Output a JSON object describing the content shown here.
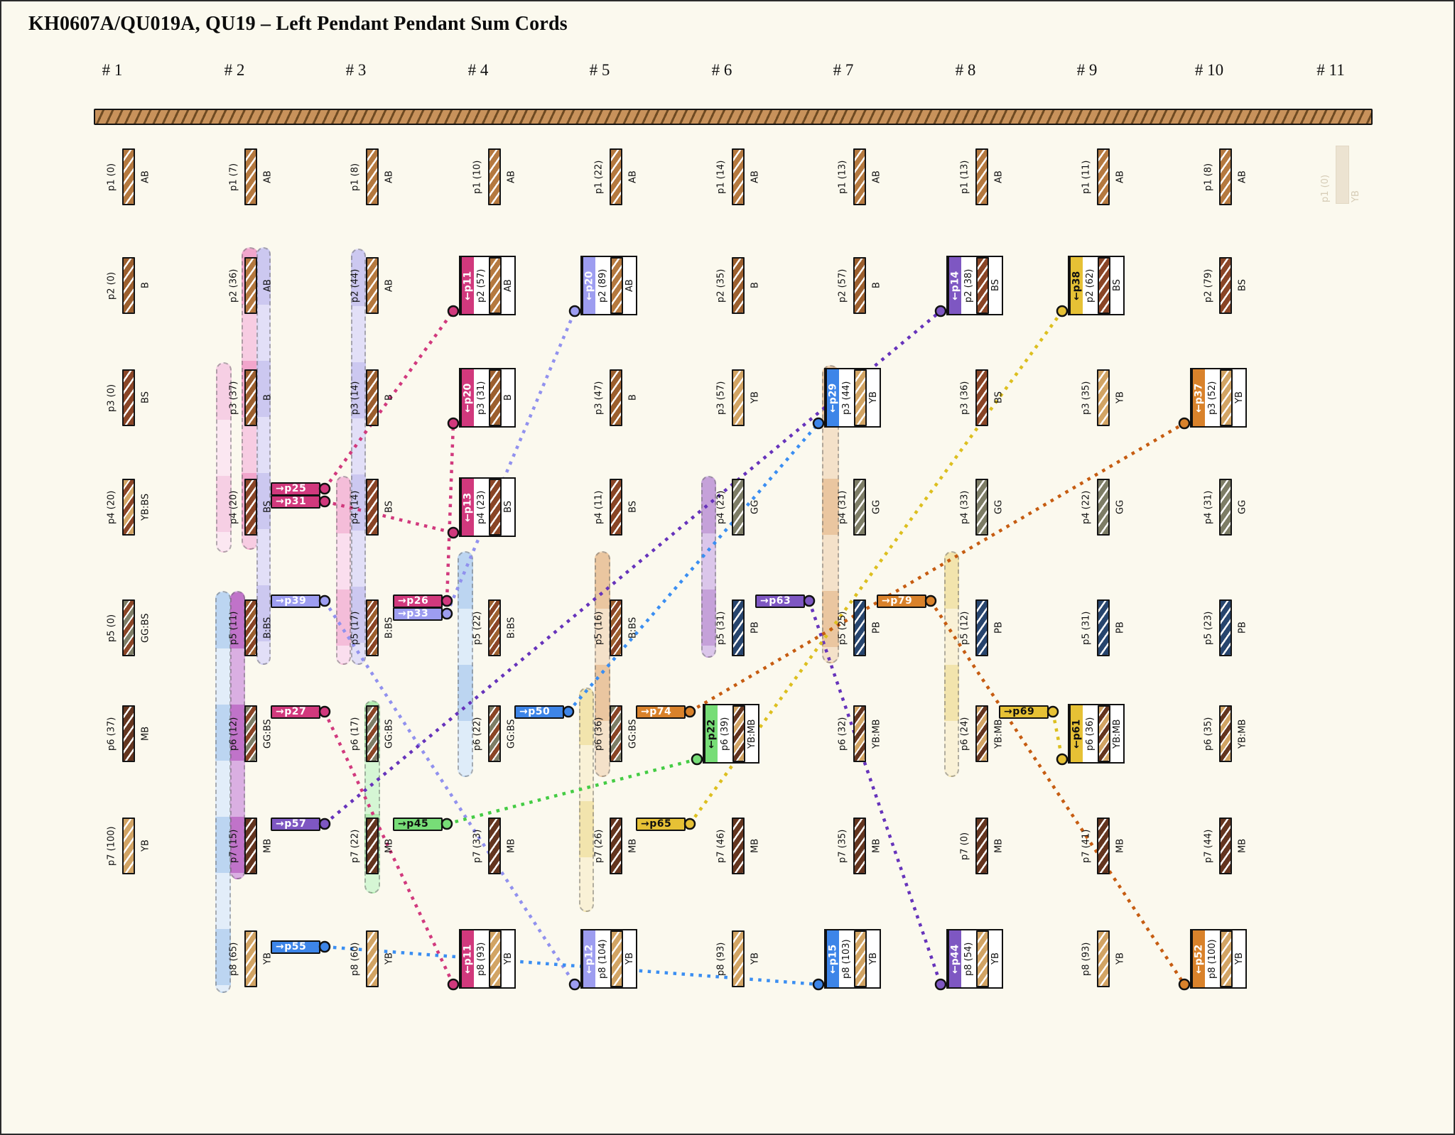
{
  "title": "KH0607A/QU019A, QU19 – Left Pendant Pendant Sum Cords",
  "column_headers": [
    "# 1",
    "# 2",
    "# 3",
    "# 4",
    "# 5",
    "# 6",
    "# 7",
    "# 8",
    "# 9",
    "# 10",
    "# 11"
  ],
  "palette": {
    "crimson": {
      "bg": "#d1397d",
      "line": "#d1397d",
      "text": "#ffffff"
    },
    "periwinkle": {
      "bg": "#9d9df0",
      "line": "#9191ee",
      "text": "#ffffff"
    },
    "blue": {
      "bg": "#3d85e8",
      "line": "#3a8ef2",
      "text": "#ffffff"
    },
    "purple": {
      "bg": "#7e57c2",
      "line": "#6633bb",
      "text": "#ffffff"
    },
    "green": {
      "bg": "#77dd77",
      "line": "#44cc44",
      "text": "#111111"
    },
    "yellow": {
      "bg": "#e6c135",
      "line": "#ddbf1f",
      "text": "#111111"
    },
    "orange": {
      "bg": "#d9822b",
      "line": "#c65c11",
      "text": "#ffffff"
    }
  },
  "cord_codes": {
    "AB": [
      "#b5793f"
    ],
    "B": [
      "#9c5f2e"
    ],
    "BS": [
      "#8a4526"
    ],
    "YB": [
      "#d2a464"
    ],
    "MB": [
      "#64351f"
    ],
    "GG": [
      "#7d7d66"
    ],
    "PB": [
      "#27456e"
    ],
    "YB:BS": [
      "#d2a464",
      "#8a4526"
    ],
    "B:BS": [
      "#9c5f2e",
      "#8a4526"
    ],
    "GG:BS": [
      "#7d7d66",
      "#8a4526"
    ],
    "YB:MB": [
      "#d2a464",
      "#64351f"
    ]
  },
  "columns": [
    {
      "header": "# 1",
      "pendants": [
        {
          "row": 1,
          "label": "p1 (0)",
          "code": "AB"
        },
        {
          "row": 2,
          "label": "p2 (0)",
          "code": "B"
        },
        {
          "row": 3,
          "label": "p3 (0)",
          "code": "BS"
        },
        {
          "row": 4,
          "label": "p4 (20)",
          "code": "YB:BS"
        },
        {
          "row": 5,
          "label": "p5 (0)",
          "code": "GG:BS"
        },
        {
          "row": 6,
          "label": "p6 (37)",
          "code": "MB"
        },
        {
          "row": 7,
          "label": "p7 (100)",
          "code": "YB"
        }
      ]
    },
    {
      "header": "# 2",
      "pendants": [
        {
          "row": 1,
          "label": "p1 (7)",
          "code": "AB"
        },
        {
          "row": 2,
          "label": "p2 (36)",
          "code": "AB"
        },
        {
          "row": 3,
          "label": "p3 (37)",
          "code": "B"
        },
        {
          "row": 4,
          "label": "p4 (20)",
          "code": "BS"
        },
        {
          "row": 5,
          "label": "p5 (11)",
          "code": "B:BS"
        },
        {
          "row": 6,
          "label": "p6 (12)",
          "code": "GG:BS"
        },
        {
          "row": 7,
          "label": "p7 (15)",
          "code": "MB"
        },
        {
          "row": 8,
          "label": "p8 (65)",
          "code": "YB"
        }
      ]
    },
    {
      "header": "# 3",
      "pendants": [
        {
          "row": 1,
          "label": "p1 (8)",
          "code": "AB"
        },
        {
          "row": 2,
          "label": "p2 (44)",
          "code": "AB"
        },
        {
          "row": 3,
          "label": "p3 (14)",
          "code": "B"
        },
        {
          "row": 4,
          "label": "p4 (14)",
          "code": "BS"
        },
        {
          "row": 5,
          "label": "p5 (17)",
          "code": "B:BS"
        },
        {
          "row": 6,
          "label": "p6 (17)",
          "code": "GG:BS"
        },
        {
          "row": 7,
          "label": "p7 (22)",
          "code": "MB"
        },
        {
          "row": 8,
          "label": "p8 (60)",
          "code": "YB"
        }
      ]
    },
    {
      "header": "# 4",
      "pendants": [
        {
          "row": 1,
          "label": "p1 (10)",
          "code": "AB"
        },
        {
          "row": 2,
          "label": "p2 (57)",
          "code": "AB",
          "sum": {
            "label": "←p11",
            "color": "crimson"
          }
        },
        {
          "row": 3,
          "label": "p3 (31)",
          "code": "B",
          "sum": {
            "label": "←p20",
            "color": "crimson"
          }
        },
        {
          "row": 4,
          "label": "p4 (23)",
          "code": "BS",
          "sum": {
            "label": "←p13",
            "color": "crimson"
          }
        },
        {
          "row": 5,
          "label": "p5 (22)",
          "code": "B:BS"
        },
        {
          "row": 6,
          "label": "p6 (22)",
          "code": "GG:BS"
        },
        {
          "row": 7,
          "label": "p7 (33)",
          "code": "MB"
        },
        {
          "row": 8,
          "label": "p8 (93)",
          "code": "YB",
          "sum": {
            "label": "←p11",
            "color": "crimson"
          }
        }
      ]
    },
    {
      "header": "# 5",
      "pendants": [
        {
          "row": 1,
          "label": "p1 (22)",
          "code": "AB"
        },
        {
          "row": 2,
          "label": "p2 (89)",
          "code": "AB",
          "sum": {
            "label": "←p20",
            "color": "periwinkle"
          }
        },
        {
          "row": 3,
          "label": "p3 (47)",
          "code": "B"
        },
        {
          "row": 4,
          "label": "p4 (11)",
          "code": "BS"
        },
        {
          "row": 5,
          "label": "p5 (16)",
          "code": "B:BS"
        },
        {
          "row": 6,
          "label": "p6 (36)",
          "code": "GG:BS"
        },
        {
          "row": 7,
          "label": "p7 (26)",
          "code": "MB"
        },
        {
          "row": 8,
          "label": "p8 (104)",
          "code": "YB",
          "sum": {
            "label": "←p12",
            "color": "periwinkle"
          }
        }
      ]
    },
    {
      "header": "# 6",
      "pendants": [
        {
          "row": 1,
          "label": "p1 (14)",
          "code": "AB"
        },
        {
          "row": 2,
          "label": "p2 (35)",
          "code": "B"
        },
        {
          "row": 3,
          "label": "p3 (57)",
          "code": "YB"
        },
        {
          "row": 4,
          "label": "p4 (23)",
          "code": "GG"
        },
        {
          "row": 5,
          "label": "p5 (31)",
          "code": "PB"
        },
        {
          "row": 6,
          "label": "p6 (39)",
          "code": "YB:MB",
          "sum": {
            "label": "←p22",
            "color": "green"
          }
        },
        {
          "row": 7,
          "label": "p7 (46)",
          "code": "MB"
        },
        {
          "row": 8,
          "label": "p8 (93)",
          "code": "YB"
        }
      ]
    },
    {
      "header": "# 7",
      "pendants": [
        {
          "row": 1,
          "label": "p1 (13)",
          "code": "AB"
        },
        {
          "row": 2,
          "label": "p2 (57)",
          "code": "B"
        },
        {
          "row": 3,
          "label": "p3 (44)",
          "code": "YB",
          "sum": {
            "label": "←p29",
            "color": "blue"
          }
        },
        {
          "row": 4,
          "label": "p4 (31)",
          "code": "GG"
        },
        {
          "row": 5,
          "label": "p5 (25)",
          "code": "PB"
        },
        {
          "row": 6,
          "label": "p6 (32)",
          "code": "YB:MB"
        },
        {
          "row": 7,
          "label": "p7 (35)",
          "code": "MB"
        },
        {
          "row": 8,
          "label": "p8 (103)",
          "code": "YB",
          "sum": {
            "label": "←p15",
            "color": "blue"
          }
        }
      ]
    },
    {
      "header": "# 8",
      "pendants": [
        {
          "row": 1,
          "label": "p1 (13)",
          "code": "AB"
        },
        {
          "row": 2,
          "label": "p2 (38)",
          "code": "BS",
          "sum": {
            "label": "←p14",
            "color": "purple"
          }
        },
        {
          "row": 3,
          "label": "p3 (36)",
          "code": "BS"
        },
        {
          "row": 4,
          "label": "p4 (33)",
          "code": "GG"
        },
        {
          "row": 5,
          "label": "p5 (12)",
          "code": "PB"
        },
        {
          "row": 6,
          "label": "p6 (24)",
          "code": "YB:MB"
        },
        {
          "row": 7,
          "label": "p7 (0)",
          "code": "MB"
        },
        {
          "row": 8,
          "label": "p8 (54)",
          "code": "YB",
          "sum": {
            "label": "←p44",
            "color": "purple"
          }
        }
      ]
    },
    {
      "header": "# 9",
      "pendants": [
        {
          "row": 1,
          "label": "p1 (11)",
          "code": "AB"
        },
        {
          "row": 2,
          "label": "p2 (62)",
          "code": "BS",
          "sum": {
            "label": "←p38",
            "color": "yellow"
          }
        },
        {
          "row": 3,
          "label": "p3 (35)",
          "code": "YB"
        },
        {
          "row": 4,
          "label": "p4 (22)",
          "code": "GG"
        },
        {
          "row": 5,
          "label": "p5 (31)",
          "code": "PB"
        },
        {
          "row": 6,
          "label": "p6 (36)",
          "code": "YB:MB",
          "sum": {
            "label": "←p61",
            "color": "yellow"
          }
        },
        {
          "row": 7,
          "label": "p7 (41)",
          "code": "MB"
        },
        {
          "row": 8,
          "label": "p8 (93)",
          "code": "YB"
        }
      ]
    },
    {
      "header": "# 10",
      "pendants": [
        {
          "row": 1,
          "label": "p1 (8)",
          "code": "AB"
        },
        {
          "row": 2,
          "label": "p2 (79)",
          "code": "BS"
        },
        {
          "row": 3,
          "label": "p3 (52)",
          "code": "YB",
          "sum": {
            "label": "←p37",
            "color": "orange"
          }
        },
        {
          "row": 4,
          "label": "p4 (31)",
          "code": "GG"
        },
        {
          "row": 5,
          "label": "p5 (23)",
          "code": "PB"
        },
        {
          "row": 6,
          "label": "p6 (35)",
          "code": "YB:MB"
        },
        {
          "row": 7,
          "label": "p7 (44)",
          "code": "MB"
        },
        {
          "row": 8,
          "label": "p8 (100)",
          "code": "YB",
          "sum": {
            "label": "←p52",
            "color": "orange"
          }
        }
      ]
    },
    {
      "header": "# 11",
      "pendants": [
        {
          "row": 1,
          "label": "p1 (0)",
          "code": "YB",
          "ghost": true
        }
      ]
    }
  ],
  "sum_labels": [
    {
      "id": "p25",
      "label": "→p25",
      "color": "crimson"
    },
    {
      "id": "p31",
      "label": "→p31",
      "color": "crimson"
    },
    {
      "id": "p39",
      "label": "→p39",
      "color": "periwinkle"
    },
    {
      "id": "p27",
      "label": "→p27",
      "color": "crimson"
    },
    {
      "id": "p57",
      "label": "→p57",
      "color": "purple"
    },
    {
      "id": "p55",
      "label": "→p55",
      "color": "blue"
    },
    {
      "id": "p26",
      "label": "→p26",
      "color": "crimson"
    },
    {
      "id": "p33",
      "label": "→p33",
      "color": "periwinkle"
    },
    {
      "id": "p45",
      "label": "→p45",
      "color": "green"
    },
    {
      "id": "p50",
      "label": "→p50",
      "color": "blue"
    },
    {
      "id": "p74",
      "label": "→p74",
      "color": "orange"
    },
    {
      "id": "p65",
      "label": "→p65",
      "color": "yellow"
    },
    {
      "id": "p63",
      "label": "→p63",
      "color": "purple"
    },
    {
      "id": "p79",
      "label": "→p79",
      "color": "orange"
    },
    {
      "id": "p69",
      "label": "→p69",
      "color": "yellow"
    }
  ]
}
